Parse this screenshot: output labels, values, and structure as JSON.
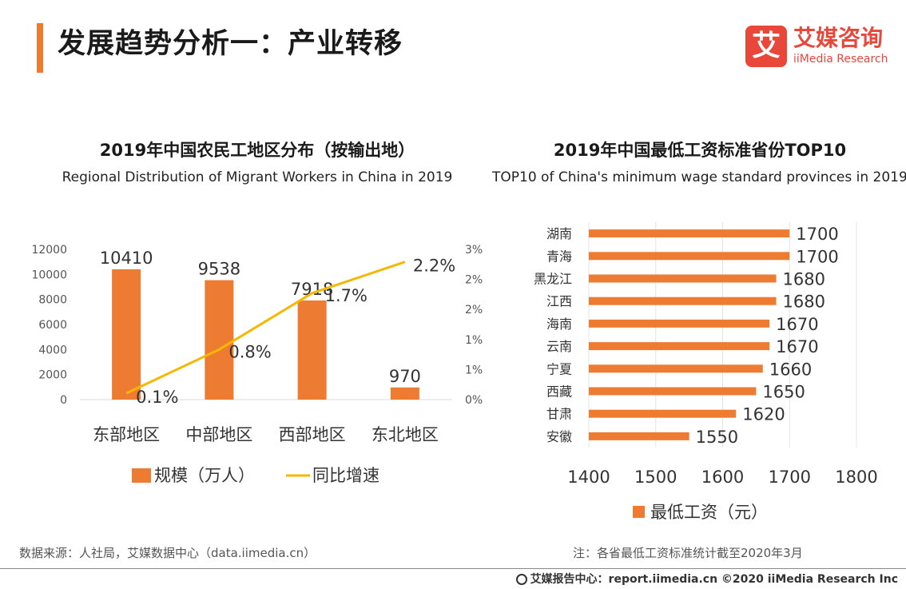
{
  "header": {
    "title": "发展趋势分析一：产业转移",
    "logo_mark": "艾",
    "logo_cn": "艾媒咨询",
    "logo_en": "iiMedia Research"
  },
  "colors": {
    "accent": "#ee7b32",
    "line": "#f5b800",
    "logo": "#e8473a"
  },
  "left": {
    "title": "2019年中国农民工地区分布（按输出地）",
    "subtitle": "Regional Distribution of Migrant Workers in China in 2019",
    "source": "数据来源：人社局，艾媒数据中心（data.iimedia.cn）"
  },
  "right": {
    "title": "2019年中国最低工资标准省份TOP10",
    "subtitle": "TOP10 of China's minimum wage standard provinces in 2019",
    "note": "注：各省最低工资标准统计截至2020年3月"
  },
  "footer": {
    "text": "艾媒报告中心：report.iimedia.cn  ©2020  iiMedia Research  Inc"
  },
  "chart_data": [
    {
      "type": "bar",
      "categories": [
        "东部地区",
        "中部地区",
        "西部地区",
        "东北地区"
      ],
      "series": [
        {
          "name": "规模（万人）",
          "type": "bar",
          "axis": "left",
          "values": [
            10410,
            9538,
            7918,
            970
          ],
          "labels": [
            "10410",
            "9538",
            "7918",
            "970"
          ]
        },
        {
          "name": "同比增速",
          "type": "line",
          "axis": "right",
          "values": [
            0.1,
            0.8,
            1.7,
            2.2
          ],
          "labels": [
            "0.1%",
            "0.8%",
            "1.7%",
            "2.2%"
          ]
        }
      ],
      "y_left": {
        "ylim": [
          0,
          12000
        ],
        "ticks": [
          "0",
          "2000",
          "4000",
          "6000",
          "8000",
          "10000",
          "12000"
        ]
      },
      "y_right": {
        "ylim": [
          0,
          2.4
        ],
        "ticks": [
          "0%",
          "1%",
          "1%",
          "2%",
          "2%",
          "3%"
        ]
      },
      "legend": "bottom",
      "grid": false
    },
    {
      "type": "bar",
      "orientation": "horizontal",
      "categories": [
        "湖南",
        "青海",
        "黑龙江",
        "江西",
        "海南",
        "云南",
        "宁夏",
        "西藏",
        "甘肃",
        "安徽"
      ],
      "series": [
        {
          "name": "最低工资（元）",
          "values": [
            1700,
            1700,
            1680,
            1680,
            1670,
            1670,
            1660,
            1650,
            1620,
            1550
          ]
        }
      ],
      "xlim": [
        1400,
        1800
      ],
      "x_ticks": [
        "1400",
        "1500",
        "1600",
        "1700",
        "1800"
      ],
      "legend": "bottom",
      "grid": true
    }
  ]
}
